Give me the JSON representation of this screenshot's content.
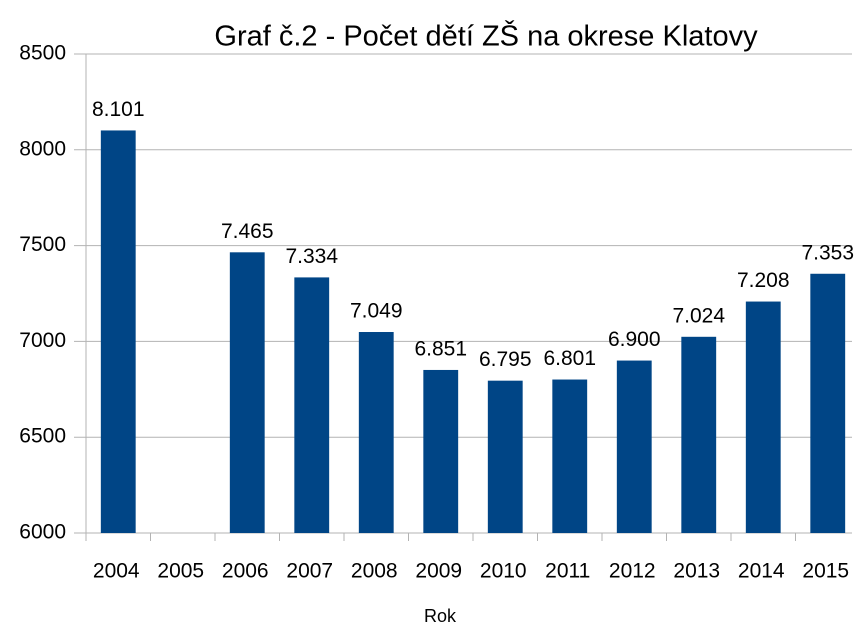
{
  "chart_data": {
    "type": "bar",
    "title": "Graf č.2 - Počet dětí ZŠ na okrese Klatovy",
    "xlabel": "Rok",
    "categories": [
      "2004",
      "2005",
      "2006",
      "2007",
      "2008",
      "2009",
      "2010",
      "2011",
      "2012",
      "2013",
      "2014",
      "2015"
    ],
    "values": [
      8101,
      null,
      7465,
      7334,
      7049,
      6851,
      6795,
      6801,
      6900,
      7024,
      7208,
      7353
    ],
    "value_labels": [
      "8.101",
      null,
      "7.465",
      "7.334",
      "7.049",
      "6.851",
      "6.795",
      "6.801",
      "6.900",
      "7.024",
      "7.208",
      "7.353"
    ],
    "color": "#004586",
    "ylim": [
      6000,
      8500
    ],
    "yticks": [
      6000,
      6500,
      7000,
      7500,
      8000,
      8500
    ],
    "grid": true
  }
}
